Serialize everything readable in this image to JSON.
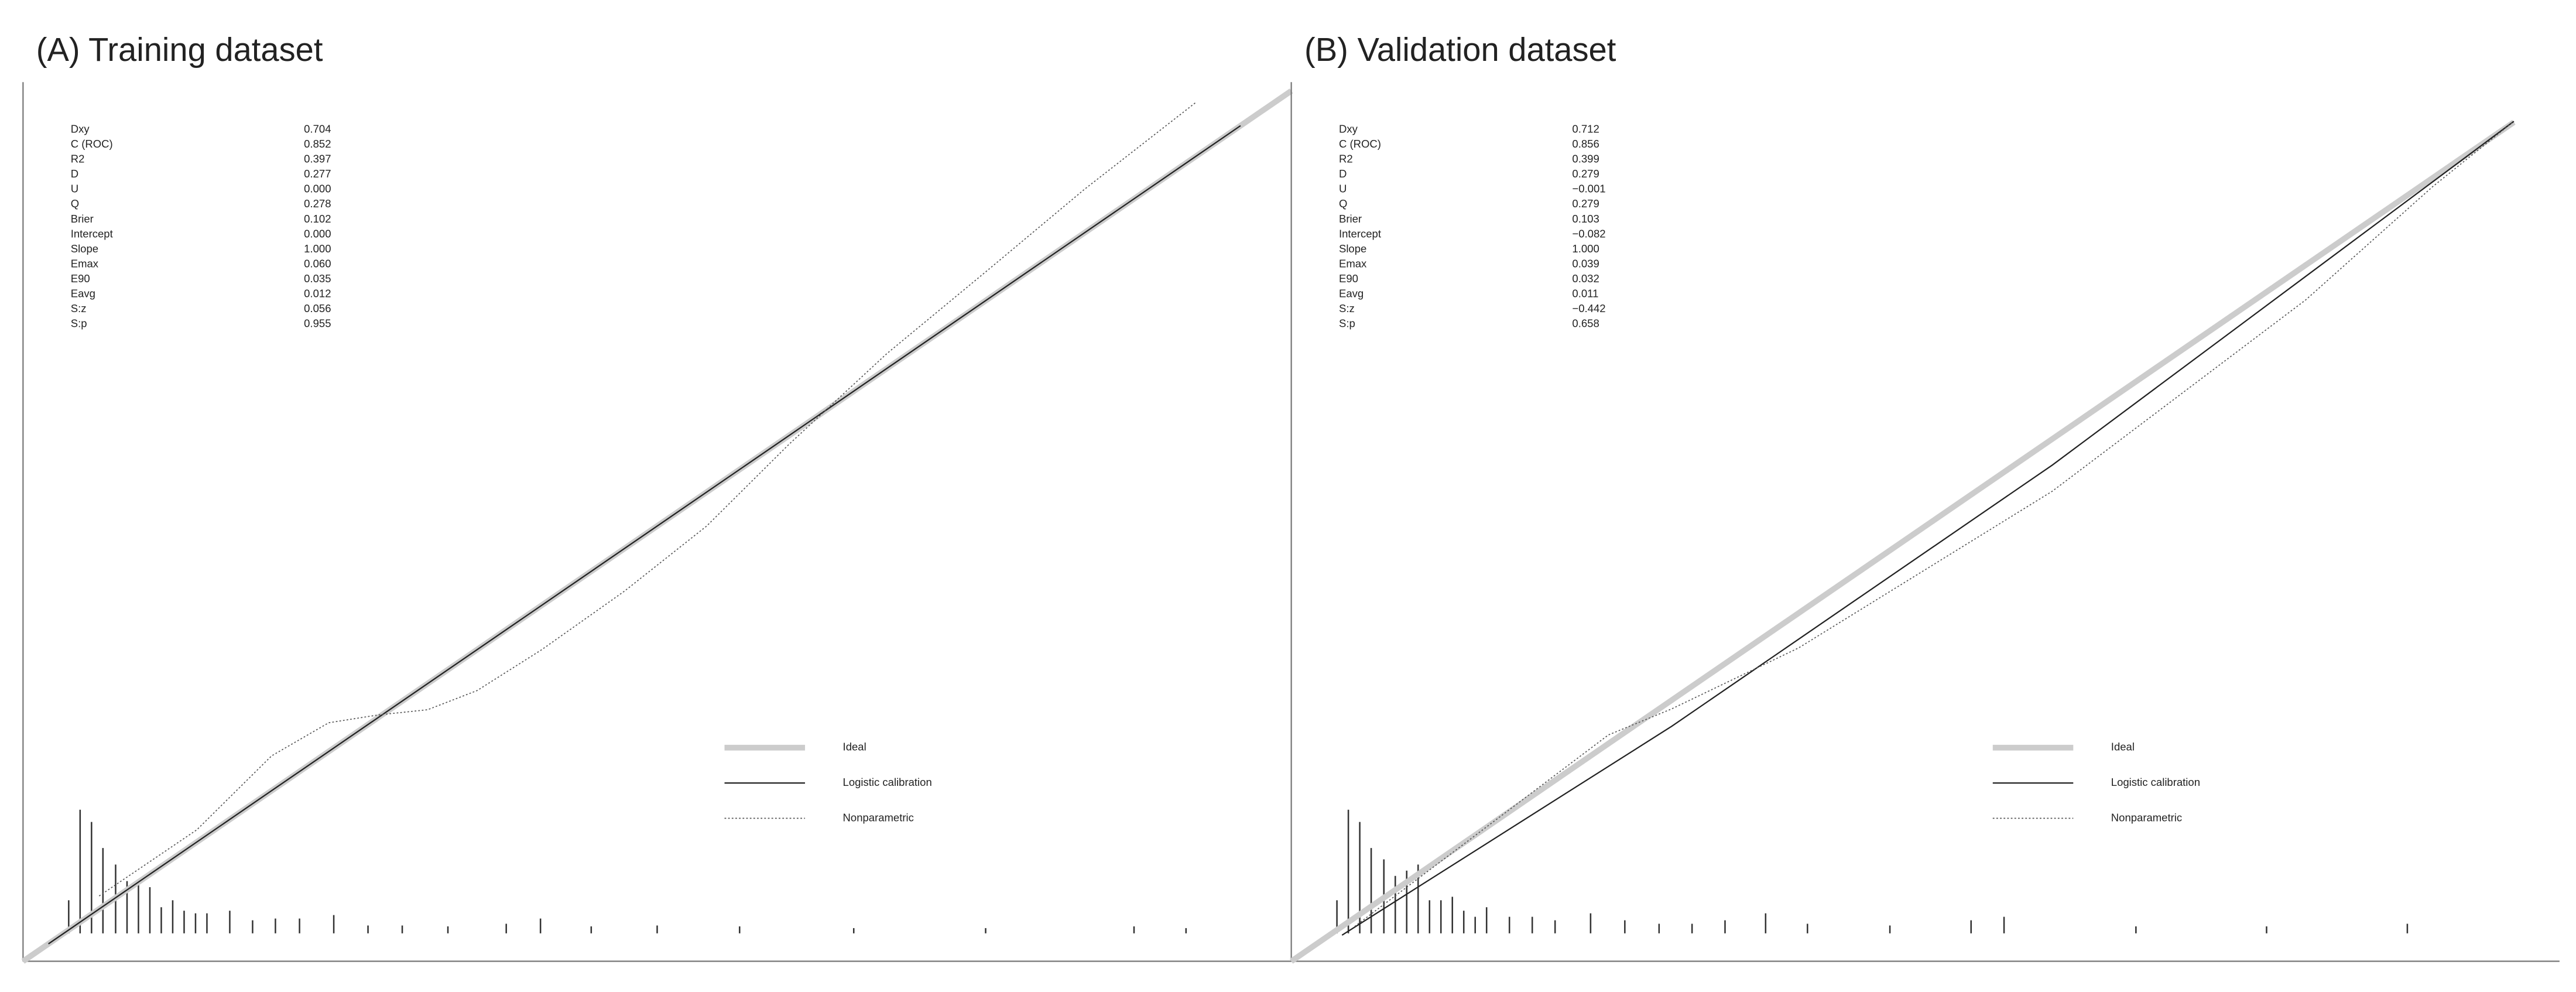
{
  "chart_data": [
    {
      "type": "line",
      "title": "(A) Training dataset",
      "xlim": [
        0,
        1
      ],
      "ylim": [
        0,
        1.01
      ],
      "stats": {
        "labels": [
          "Dxy",
          "C (ROC)",
          "R2",
          "D",
          "U",
          "Q",
          "Brier",
          "Intercept",
          "Slope",
          "Emax",
          "E90",
          "Eavg",
          "S:z",
          "S:p"
        ],
        "values": [
          "0.704",
          "0.852",
          "0.397",
          "0.277",
          "0.000",
          "0.278",
          "0.102",
          "0.000",
          "1.000",
          "0.060",
          "0.035",
          "0.012",
          "0.056",
          "0.955"
        ]
      },
      "series": [
        {
          "name": "Ideal",
          "color": "#cccccc",
          "style": "thick",
          "x": [
            0,
            1
          ],
          "values": [
            0,
            1
          ]
        },
        {
          "name": "Logistic calibration",
          "color": "#222222",
          "style": "solid",
          "x": [
            0.02,
            0.96
          ],
          "values": [
            0.02,
            0.96
          ]
        },
        {
          "name": "Nonparametric",
          "color": "#555555",
          "style": "dotted",
          "x": [
            0.06,
            0.137,
            0.196,
            0.241,
            0.28,
            0.319,
            0.358,
            0.409,
            0.474,
            0.539,
            0.604,
            0.681,
            0.759,
            0.837,
            0.925
          ],
          "values": [
            0.075,
            0.151,
            0.236,
            0.274,
            0.283,
            0.289,
            0.311,
            0.358,
            0.425,
            0.5,
            0.594,
            0.698,
            0.792,
            0.887,
            0.987
          ]
        }
      ],
      "spikes": {
        "x": [
          0.036,
          0.045,
          0.054,
          0.063,
          0.073,
          0.082,
          0.091,
          0.1,
          0.109,
          0.118,
          0.127,
          0.136,
          0.145,
          0.163,
          0.181,
          0.199,
          0.218,
          0.245,
          0.272,
          0.299,
          0.335,
          0.381,
          0.408,
          0.448,
          0.5,
          0.565,
          0.655,
          0.759,
          0.876,
          0.917
        ],
        "values": [
          0.038,
          0.142,
          0.128,
          0.098,
          0.079,
          0.06,
          0.057,
          0.053,
          0.03,
          0.038,
          0.026,
          0.023,
          0.023,
          0.026,
          0.015,
          0.017,
          0.017,
          0.021,
          0.009,
          0.009,
          0.008,
          0.011,
          0.017,
          0.008,
          0.009,
          0.008,
          0.006,
          0.006,
          0.008,
          0.006
        ]
      }
    },
    {
      "type": "line",
      "title": "(B) Validation dataset",
      "xlim": [
        0,
        1
      ],
      "ylim": [
        0,
        1.01
      ],
      "stats": {
        "labels": [
          "Dxy",
          "C (ROC)",
          "R2",
          "D",
          "U",
          "Q",
          "Brier",
          "Intercept",
          "Slope",
          "Emax",
          "E90",
          "Eavg",
          "S:z",
          "S:p"
        ],
        "values": [
          "0.712",
          "0.856",
          "0.399",
          "0.279",
          "−0.001",
          "0.279",
          "0.103",
          "−0.082",
          "1.000",
          "0.039",
          "0.032",
          "0.011",
          "−0.442",
          "0.658"
        ]
      },
      "series": [
        {
          "name": "Ideal",
          "color": "#cccccc",
          "style": "thick",
          "x": [
            0,
            0.964
          ],
          "values": [
            0,
            0.964
          ]
        },
        {
          "name": "Logistic calibration",
          "color": "#222222",
          "style": "solid",
          "x": [
            0.04,
            0.3,
            0.6,
            0.964
          ],
          "values": [
            0.03,
            0.27,
            0.57,
            0.965
          ]
        },
        {
          "name": "Nonparametric",
          "color": "#555555",
          "style": "dotted",
          "x": [
            0.05,
            0.15,
            0.25,
            0.3,
            0.4,
            0.5,
            0.6,
            0.7,
            0.8,
            0.9,
            0.964
          ],
          "values": [
            0.04,
            0.15,
            0.26,
            0.29,
            0.36,
            0.45,
            0.54,
            0.65,
            0.76,
            0.89,
            0.965
          ]
        }
      ],
      "spikes": {
        "x": [
          0.036,
          0.045,
          0.054,
          0.063,
          0.073,
          0.082,
          0.091,
          0.1,
          0.109,
          0.118,
          0.127,
          0.136,
          0.145,
          0.154,
          0.172,
          0.19,
          0.208,
          0.236,
          0.263,
          0.29,
          0.316,
          0.342,
          0.374,
          0.407,
          0.472,
          0.536,
          0.562,
          0.666,
          0.769,
          0.88
        ],
        "values": [
          0.038,
          0.142,
          0.128,
          0.098,
          0.085,
          0.066,
          0.072,
          0.079,
          0.038,
          0.038,
          0.042,
          0.026,
          0.019,
          0.03,
          0.019,
          0.019,
          0.015,
          0.023,
          0.015,
          0.011,
          0.011,
          0.015,
          0.023,
          0.011,
          0.009,
          0.015,
          0.019,
          0.008,
          0.008,
          0.011
        ]
      }
    }
  ]
}
